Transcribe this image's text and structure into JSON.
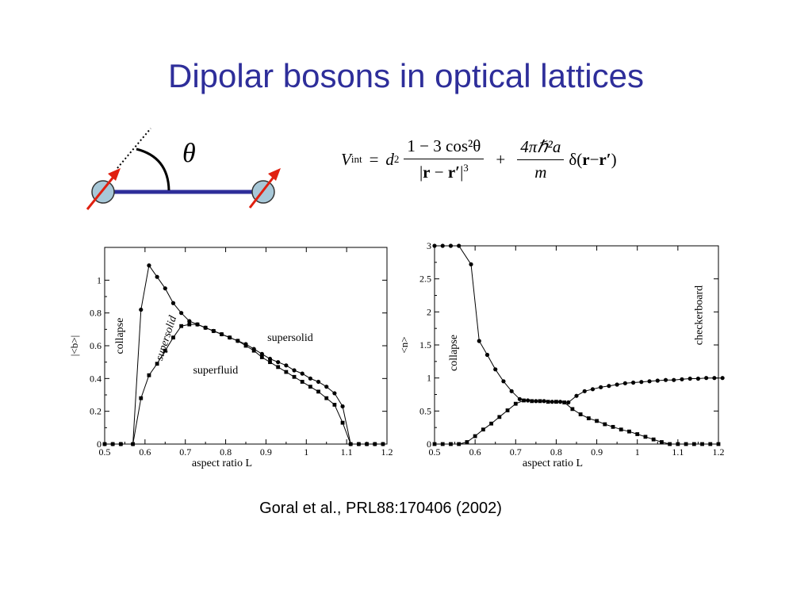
{
  "slide": {
    "title": "Dipolar bosons in optical lattices",
    "citation": "Goral et al., PRL88:170406 (2002)"
  },
  "diagram": {
    "angle_symbol": "θ"
  },
  "equation": {
    "lhs": "V",
    "lhs_sub": "int",
    "eq": "=",
    "d": "d",
    "d_sup": "2",
    "num1": "1 − 3 cos²θ",
    "den1_a": "|",
    "den1_r": "r",
    "den1_minus": " − ",
    "den1_rp": "r′",
    "den1_b": "|",
    "den1_sup": "3",
    "plus": "+",
    "num2": "4πℏ²a",
    "den2": "m",
    "delta": "δ(",
    "r": "r",
    "minus": " − ",
    "rp": "r′",
    "close": ")"
  },
  "chart_data": [
    {
      "type": "line",
      "xlabel": "aspect ratio L",
      "ylabel": "|<b>|",
      "xlim": [
        0.5,
        1.2
      ],
      "ylim": [
        0,
        1.2
      ],
      "xticks": [
        0.5,
        0.6,
        0.7,
        0.8,
        0.9,
        1,
        1.1,
        1.2
      ],
      "xtick_labels": [
        "0.5",
        "0.6",
        "0.7",
        "0.8",
        "0.9",
        "1",
        "1.1",
        "1.2"
      ],
      "yticks": [
        0,
        0.2,
        0.4,
        0.6,
        0.8,
        1
      ],
      "ytick_labels": [
        "0",
        "0.2",
        "0.4",
        "0.6",
        "0.8",
        "1"
      ],
      "annotations": [
        {
          "text": "collapse",
          "x": 0.545,
          "y": 0.66,
          "rotate": -90,
          "italic": false
        },
        {
          "text": "supersolid",
          "x": 0.66,
          "y": 0.64,
          "rotate": -72,
          "italic": true
        },
        {
          "text": "supersolid",
          "x": 0.96,
          "y": 0.63,
          "rotate": 0,
          "italic": false
        },
        {
          "text": "superfluid",
          "x": 0.775,
          "y": 0.43,
          "rotate": 0,
          "italic": false
        }
      ],
      "series": [
        {
          "marker": "circle",
          "x": [
            0.5,
            0.52,
            0.54,
            0.57,
            0.59,
            0.61,
            0.63,
            0.65,
            0.67,
            0.69,
            0.71,
            0.73,
            0.75,
            0.77,
            0.79,
            0.81,
            0.83,
            0.85,
            0.87,
            0.89,
            0.91,
            0.93,
            0.95,
            0.97,
            0.99,
            1.01,
            1.03,
            1.05,
            1.07,
            1.09,
            1.11,
            1.13,
            1.15,
            1.17,
            1.19
          ],
          "y": [
            0,
            0,
            0,
            0,
            0.82,
            1.09,
            1.02,
            0.95,
            0.86,
            0.8,
            0.75,
            0.73,
            0.71,
            0.69,
            0.67,
            0.65,
            0.63,
            0.61,
            0.58,
            0.55,
            0.52,
            0.5,
            0.48,
            0.45,
            0.43,
            0.4,
            0.38,
            0.35,
            0.31,
            0.23,
            0,
            0,
            0,
            0,
            0
          ]
        },
        {
          "marker": "square",
          "x": [
            0.5,
            0.52,
            0.54,
            0.57,
            0.59,
            0.61,
            0.63,
            0.65,
            0.67,
            0.69,
            0.71,
            0.73,
            0.75,
            0.77,
            0.79,
            0.81,
            0.83,
            0.85,
            0.87,
            0.89,
            0.91,
            0.93,
            0.95,
            0.97,
            0.99,
            1.01,
            1.03,
            1.05,
            1.07,
            1.09,
            1.11,
            1.13,
            1.15,
            1.17,
            1.19
          ],
          "y": [
            0,
            0,
            0,
            0,
            0.28,
            0.42,
            0.49,
            0.57,
            0.65,
            0.72,
            0.73,
            0.73,
            0.71,
            0.69,
            0.67,
            0.65,
            0.63,
            0.6,
            0.57,
            0.53,
            0.5,
            0.47,
            0.44,
            0.41,
            0.38,
            0.35,
            0.32,
            0.28,
            0.24,
            0.13,
            0,
            0,
            0,
            0,
            0
          ]
        }
      ]
    },
    {
      "type": "line",
      "xlabel": "aspect ratio L",
      "ylabel": "<n>",
      "xlim": [
        0.5,
        1.2
      ],
      "ylim": [
        0,
        3
      ],
      "xticks": [
        0.5,
        0.6,
        0.7,
        0.8,
        0.9,
        1,
        1.1,
        1.2
      ],
      "xtick_labels": [
        "0.5",
        "0.6",
        "0.7",
        "0.8",
        "0.9",
        "1",
        "1.1",
        "1.2"
      ],
      "yticks": [
        0,
        0.5,
        1,
        1.5,
        2,
        2.5,
        3
      ],
      "ytick_labels": [
        "0",
        "0.5",
        "1",
        "1.5",
        "2",
        "2.5",
        "3"
      ],
      "annotations": [
        {
          "text": "collapse",
          "x": 0.555,
          "y": 1.38,
          "rotate": -90,
          "italic": false
        },
        {
          "text": "checkerboard",
          "x": 1.16,
          "y": 1.95,
          "rotate": -90,
          "italic": false
        }
      ],
      "series": [
        {
          "marker": "circle",
          "x": [
            0.5,
            0.52,
            0.54,
            0.56,
            0.59,
            0.61,
            0.63,
            0.65,
            0.67,
            0.69,
            0.71,
            0.73,
            0.75,
            0.77,
            0.79,
            0.81,
            0.83,
            0.85,
            0.87,
            0.89,
            0.91,
            0.93,
            0.95,
            0.97,
            0.99,
            1.01,
            1.03,
            1.05,
            1.07,
            1.09,
            1.11,
            1.13,
            1.15,
            1.17,
            1.19,
            1.21
          ],
          "y": [
            3,
            3,
            3,
            3,
            2.72,
            1.56,
            1.35,
            1.13,
            0.95,
            0.8,
            0.68,
            0.66,
            0.65,
            0.65,
            0.64,
            0.64,
            0.63,
            0.73,
            0.8,
            0.83,
            0.86,
            0.88,
            0.9,
            0.92,
            0.93,
            0.94,
            0.95,
            0.96,
            0.97,
            0.97,
            0.98,
            0.99,
            0.99,
            1,
            1,
            1
          ]
        },
        {
          "marker": "square",
          "x": [
            0.5,
            0.52,
            0.54,
            0.56,
            0.58,
            0.6,
            0.62,
            0.64,
            0.66,
            0.68,
            0.7,
            0.72,
            0.74,
            0.76,
            0.78,
            0.8,
            0.82,
            0.84,
            0.86,
            0.88,
            0.9,
            0.92,
            0.94,
            0.96,
            0.98,
            1,
            1.02,
            1.04,
            1.06,
            1.08,
            1.1,
            1.12,
            1.14,
            1.16,
            1.18,
            1.2
          ],
          "y": [
            0,
            0,
            0,
            0,
            0.03,
            0.12,
            0.22,
            0.31,
            0.41,
            0.51,
            0.61,
            0.66,
            0.65,
            0.65,
            0.64,
            0.64,
            0.63,
            0.53,
            0.45,
            0.39,
            0.35,
            0.3,
            0.26,
            0.22,
            0.19,
            0.15,
            0.11,
            0.07,
            0.03,
            0,
            0,
            0,
            0,
            0,
            0,
            0
          ]
        }
      ]
    }
  ]
}
